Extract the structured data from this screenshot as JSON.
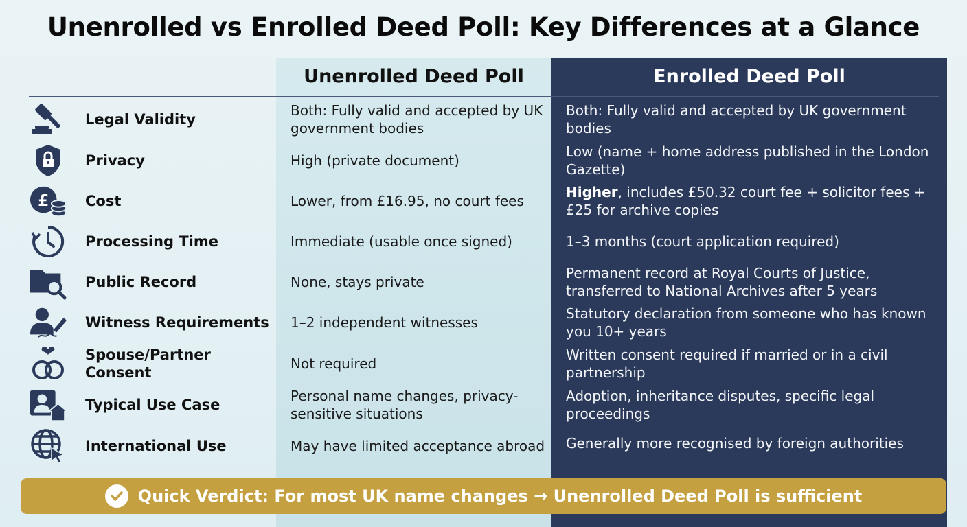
{
  "title": "Unenrolled vs Enrolled Deed Poll: Key Differences at a Glance",
  "columns": {
    "unenrolled": "Unenrolled Deed Poll",
    "enrolled": "Enrolled Deed Poll"
  },
  "colors": {
    "enrolled_bg": "#2b3a5a",
    "unenrolled_bg": "#cfe6eb",
    "verdict_bg": "#c4a040",
    "icon": "#2b3a5a"
  },
  "rows": [
    {
      "icon": "gavel-icon",
      "label": "Legal Validity",
      "unenrolled": "Both: Fully valid and accepted by UK government bodies",
      "enrolled": "Both: Fully valid and accepted by UK government bodies"
    },
    {
      "icon": "shield-lock-icon",
      "label": "Privacy",
      "unenrolled": "High (private document)",
      "enrolled": "Low (name + home address published in the London Gazette)"
    },
    {
      "icon": "pound-coins-icon",
      "label": "Cost",
      "unenrolled": "Lower, from £16.95, no court fees",
      "enrolled_bold": "Higher",
      "enrolled": ", includes £50.32 court fee + solicitor fees + £25 for archive copies"
    },
    {
      "icon": "clock-icon",
      "label": "Processing Time",
      "unenrolled": "Immediate (usable once signed)",
      "enrolled": "1–3 months (court application required)"
    },
    {
      "icon": "folder-search-icon",
      "label": "Public Record",
      "unenrolled": "None, stays private",
      "enrolled": "Permanent record at Royal Courts of Justice, transferred to National Archives after 5 years"
    },
    {
      "icon": "witness-sign-icon",
      "label": "Witness Requirements",
      "unenrolled": "1–2 independent witnesses",
      "enrolled": "Statutory declaration from someone who has known you 10+ years"
    },
    {
      "icon": "rings-icon",
      "label": "Spouse/Partner Consent",
      "unenrolled": "Not required",
      "enrolled": "Written consent required if married or in a civil partnership"
    },
    {
      "icon": "person-home-icon",
      "label": "Typical Use Case",
      "unenrolled": "Personal name changes, privacy-sensitive situations",
      "enrolled": "Adoption, inheritance disputes, specific legal proceedings"
    },
    {
      "icon": "globe-cursor-icon",
      "label": "International Use",
      "unenrolled": "May have limited acceptance abroad",
      "enrolled": "Generally more recognised by foreign authorities"
    }
  ],
  "verdict": "Quick Verdict: For most UK name changes → Unenrolled Deed Poll is sufficient"
}
